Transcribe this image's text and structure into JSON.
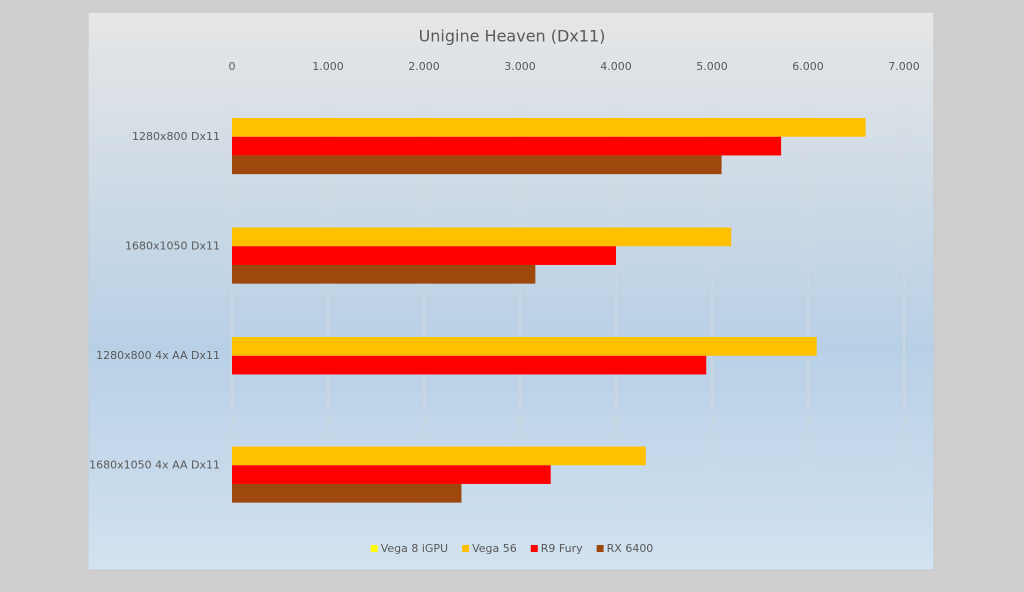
{
  "chart_data": {
    "type": "bar",
    "orientation": "horizontal",
    "title": "Unigine Heaven (Dx11)",
    "categories": [
      "1280x800 Dx11",
      "1680x1050 Dx11",
      "1280x800 4x AA Dx11",
      "1680x1050 4x AA Dx11"
    ],
    "series": [
      {
        "name": "Vega 8 iGPU",
        "color": "#ffff00",
        "values": [
          null,
          null,
          null,
          null
        ]
      },
      {
        "name": "Vega 56",
        "color": "#ffc000",
        "values": [
          6600,
          5200,
          6090,
          4310
        ]
      },
      {
        "name": "R9 Fury",
        "color": "#ff0000",
        "values": [
          5720,
          4000,
          4940,
          3320
        ]
      },
      {
        "name": "RX 6400",
        "color": "#9e480e",
        "values": [
          5100,
          3160,
          null,
          2390
        ]
      }
    ],
    "xlim": [
      0,
      7000
    ],
    "xticks": [
      0,
      {
        "value": 1000,
        "label": "1.000"
      },
      {
        "value": 2000,
        "label": "2.000"
      },
      {
        "value": 3000,
        "label": "3.000"
      },
      {
        "value": 4000,
        "label": "4.000"
      },
      {
        "value": 5000,
        "label": "5.000"
      },
      {
        "value": 6000,
        "label": "6.000"
      },
      {
        "value": 7000,
        "label": "7.000"
      }
    ],
    "grid": true,
    "legend": "bottom"
  }
}
